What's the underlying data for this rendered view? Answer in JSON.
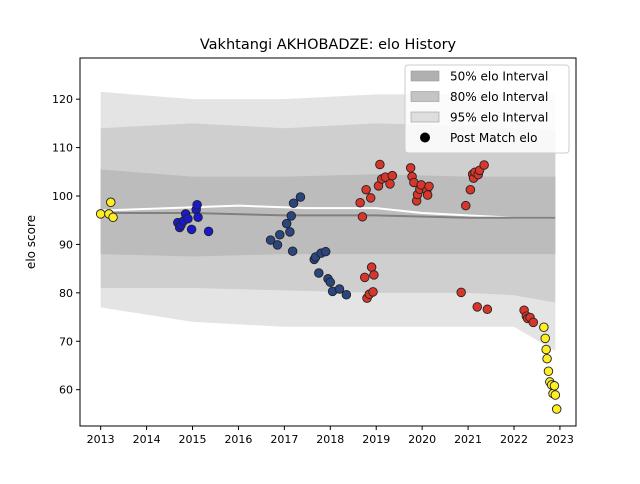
{
  "chart_data": {
    "type": "scatter",
    "title": "Vakhtangi AKHOBADZE: elo History",
    "xlabel": "",
    "ylabel": "elo score",
    "xlim": [
      2012.55,
      2023.35
    ],
    "ylim": [
      52.5,
      128.5
    ],
    "x_ticks": [
      2013,
      2014,
      2015,
      2016,
      2017,
      2018,
      2019,
      2020,
      2021,
      2022,
      2023
    ],
    "y_ticks": [
      60,
      70,
      80,
      90,
      100,
      110,
      120
    ],
    "grid": false,
    "legend": {
      "placement": "top-right",
      "entries": [
        {
          "label": "50% elo Interval",
          "color": "#b0b0b0",
          "kind": "patch"
        },
        {
          "label": "80% elo Interval",
          "color": "#c4c4c4",
          "kind": "patch"
        },
        {
          "label": "95% elo Interval",
          "color": "#dedede",
          "kind": "patch"
        },
        {
          "label": "Post Match elo",
          "color": "#000000",
          "kind": "marker"
        }
      ]
    },
    "bands": {
      "x": [
        2013.0,
        2015.0,
        2017.0,
        2019.0,
        2021.0,
        2022.0,
        2022.9
      ],
      "p95_upper": [
        121.5,
        120.0,
        120.0,
        121.0,
        121.0,
        121.0,
        121.0
      ],
      "p95_lower": [
        77.0,
        74.0,
        73.0,
        73.0,
        73.0,
        73.0,
        68.0
      ],
      "p80_upper": [
        114.0,
        115.0,
        114.0,
        115.0,
        114.5,
        114.0,
        113.5
      ],
      "p80_lower": [
        81.0,
        81.0,
        80.5,
        80.0,
        80.0,
        79.5,
        78.0
      ],
      "p50_upper": [
        105.5,
        104.0,
        104.0,
        104.5,
        104.0,
        104.0,
        104.0
      ],
      "p50_lower": [
        88.0,
        87.5,
        88.0,
        88.0,
        88.0,
        88.0,
        88.0
      ]
    },
    "mean_lines": [
      {
        "color": "#ffffff",
        "x": [
          2013.0,
          2014.5,
          2016.0,
          2017.5,
          2019.0,
          2020.0,
          2021.0,
          2022.0,
          2022.9
        ],
        "y": [
          97.0,
          97.5,
          98.0,
          97.5,
          97.5,
          96.5,
          96.0,
          95.5,
          95.5
        ]
      },
      {
        "color": "#808080",
        "x": [
          2013.0,
          2015.0,
          2017.0,
          2019.0,
          2021.0,
          2022.0,
          2022.9
        ],
        "y": [
          96.5,
          96.5,
          96.0,
          96.0,
          95.5,
          95.5,
          95.5
        ]
      }
    ],
    "series": [
      {
        "color": "#ffee22",
        "points": [
          [
            2013.0,
            96.3
          ],
          [
            2013.18,
            96.3
          ],
          [
            2013.22,
            98.7
          ],
          [
            2013.27,
            95.6
          ],
          [
            2022.65,
            72.9
          ],
          [
            2022.68,
            70.6
          ],
          [
            2022.7,
            68.3
          ],
          [
            2022.72,
            66.4
          ],
          [
            2022.75,
            63.8
          ],
          [
            2022.78,
            61.6
          ],
          [
            2022.82,
            61.0
          ],
          [
            2022.85,
            59.2
          ],
          [
            2022.88,
            60.8
          ],
          [
            2022.9,
            58.9
          ],
          [
            2022.93,
            56.0
          ]
        ]
      },
      {
        "color": "#1a1acc",
        "points": [
          [
            2014.68,
            94.5
          ],
          [
            2014.72,
            93.5
          ],
          [
            2014.75,
            94.0
          ],
          [
            2014.8,
            94.8
          ],
          [
            2014.85,
            96.3
          ],
          [
            2014.9,
            95.3
          ],
          [
            2014.98,
            93.1
          ],
          [
            2015.08,
            97.2
          ],
          [
            2015.1,
            98.2
          ],
          [
            2015.12,
            95.6
          ],
          [
            2015.35,
            92.7
          ]
        ]
      },
      {
        "color": "#2b4580",
        "points": [
          [
            2016.7,
            90.9
          ],
          [
            2016.85,
            89.9
          ],
          [
            2016.9,
            92.0
          ],
          [
            2017.05,
            94.3
          ],
          [
            2017.12,
            92.6
          ],
          [
            2017.15,
            95.9
          ],
          [
            2017.18,
            88.6
          ],
          [
            2017.2,
            98.5
          ],
          [
            2017.35,
            99.8
          ],
          [
            2017.65,
            86.9
          ],
          [
            2017.68,
            87.4
          ],
          [
            2017.75,
            84.1
          ],
          [
            2017.8,
            88.2
          ],
          [
            2017.9,
            88.5
          ],
          [
            2017.95,
            82.9
          ],
          [
            2018.0,
            82.2
          ],
          [
            2018.05,
            80.3
          ],
          [
            2018.2,
            80.8
          ],
          [
            2018.35,
            79.6
          ]
        ]
      },
      {
        "color": "#d9362b",
        "points": [
          [
            2018.65,
            98.6
          ],
          [
            2018.7,
            95.7
          ],
          [
            2018.75,
            83.2
          ],
          [
            2018.78,
            101.3
          ],
          [
            2018.8,
            78.9
          ],
          [
            2018.85,
            79.7
          ],
          [
            2018.88,
            99.6
          ],
          [
            2018.9,
            85.3
          ],
          [
            2018.93,
            80.2
          ],
          [
            2018.95,
            83.7
          ],
          [
            2019.05,
            102.1
          ],
          [
            2019.08,
            106.5
          ],
          [
            2019.12,
            103.5
          ],
          [
            2019.2,
            103.9
          ],
          [
            2019.3,
            102.5
          ],
          [
            2019.35,
            104.2
          ],
          [
            2019.75,
            105.8
          ],
          [
            2019.78,
            104.0
          ],
          [
            2019.82,
            102.8
          ],
          [
            2019.88,
            99.0
          ],
          [
            2019.9,
            100.3
          ],
          [
            2019.95,
            101.4
          ],
          [
            2019.98,
            102.3
          ],
          [
            2020.1,
            101.1
          ],
          [
            2020.12,
            100.2
          ],
          [
            2020.15,
            102.0
          ],
          [
            2020.85,
            80.1
          ],
          [
            2020.95,
            98.0
          ],
          [
            2021.05,
            101.3
          ],
          [
            2021.1,
            104.5
          ],
          [
            2021.12,
            103.7
          ],
          [
            2021.15,
            104.9
          ],
          [
            2021.2,
            77.1
          ],
          [
            2021.22,
            104.4
          ],
          [
            2021.25,
            105.3
          ],
          [
            2021.35,
            106.4
          ],
          [
            2021.42,
            76.6
          ],
          [
            2022.22,
            76.4
          ],
          [
            2022.27,
            75.2
          ],
          [
            2022.3,
            74.7
          ],
          [
            2022.35,
            74.9
          ],
          [
            2022.42,
            73.9
          ]
        ]
      }
    ]
  }
}
